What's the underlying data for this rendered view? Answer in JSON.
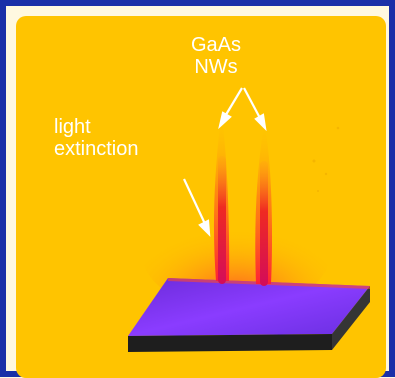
{
  "figure": {
    "label_nws_line1": "GaAs",
    "label_nws_line2": "NWs",
    "label_light_line1": "light",
    "label_light_line2": "extinction"
  },
  "colors": {
    "frame_border": "#1a2fa8",
    "frame_background": "#fff8e0",
    "panel_background": "#ffc400",
    "plume_red": "#e8202a",
    "substrate_purple": "#7a2cff",
    "substrate_edge": "#222222",
    "label_text": "#ffffff"
  }
}
